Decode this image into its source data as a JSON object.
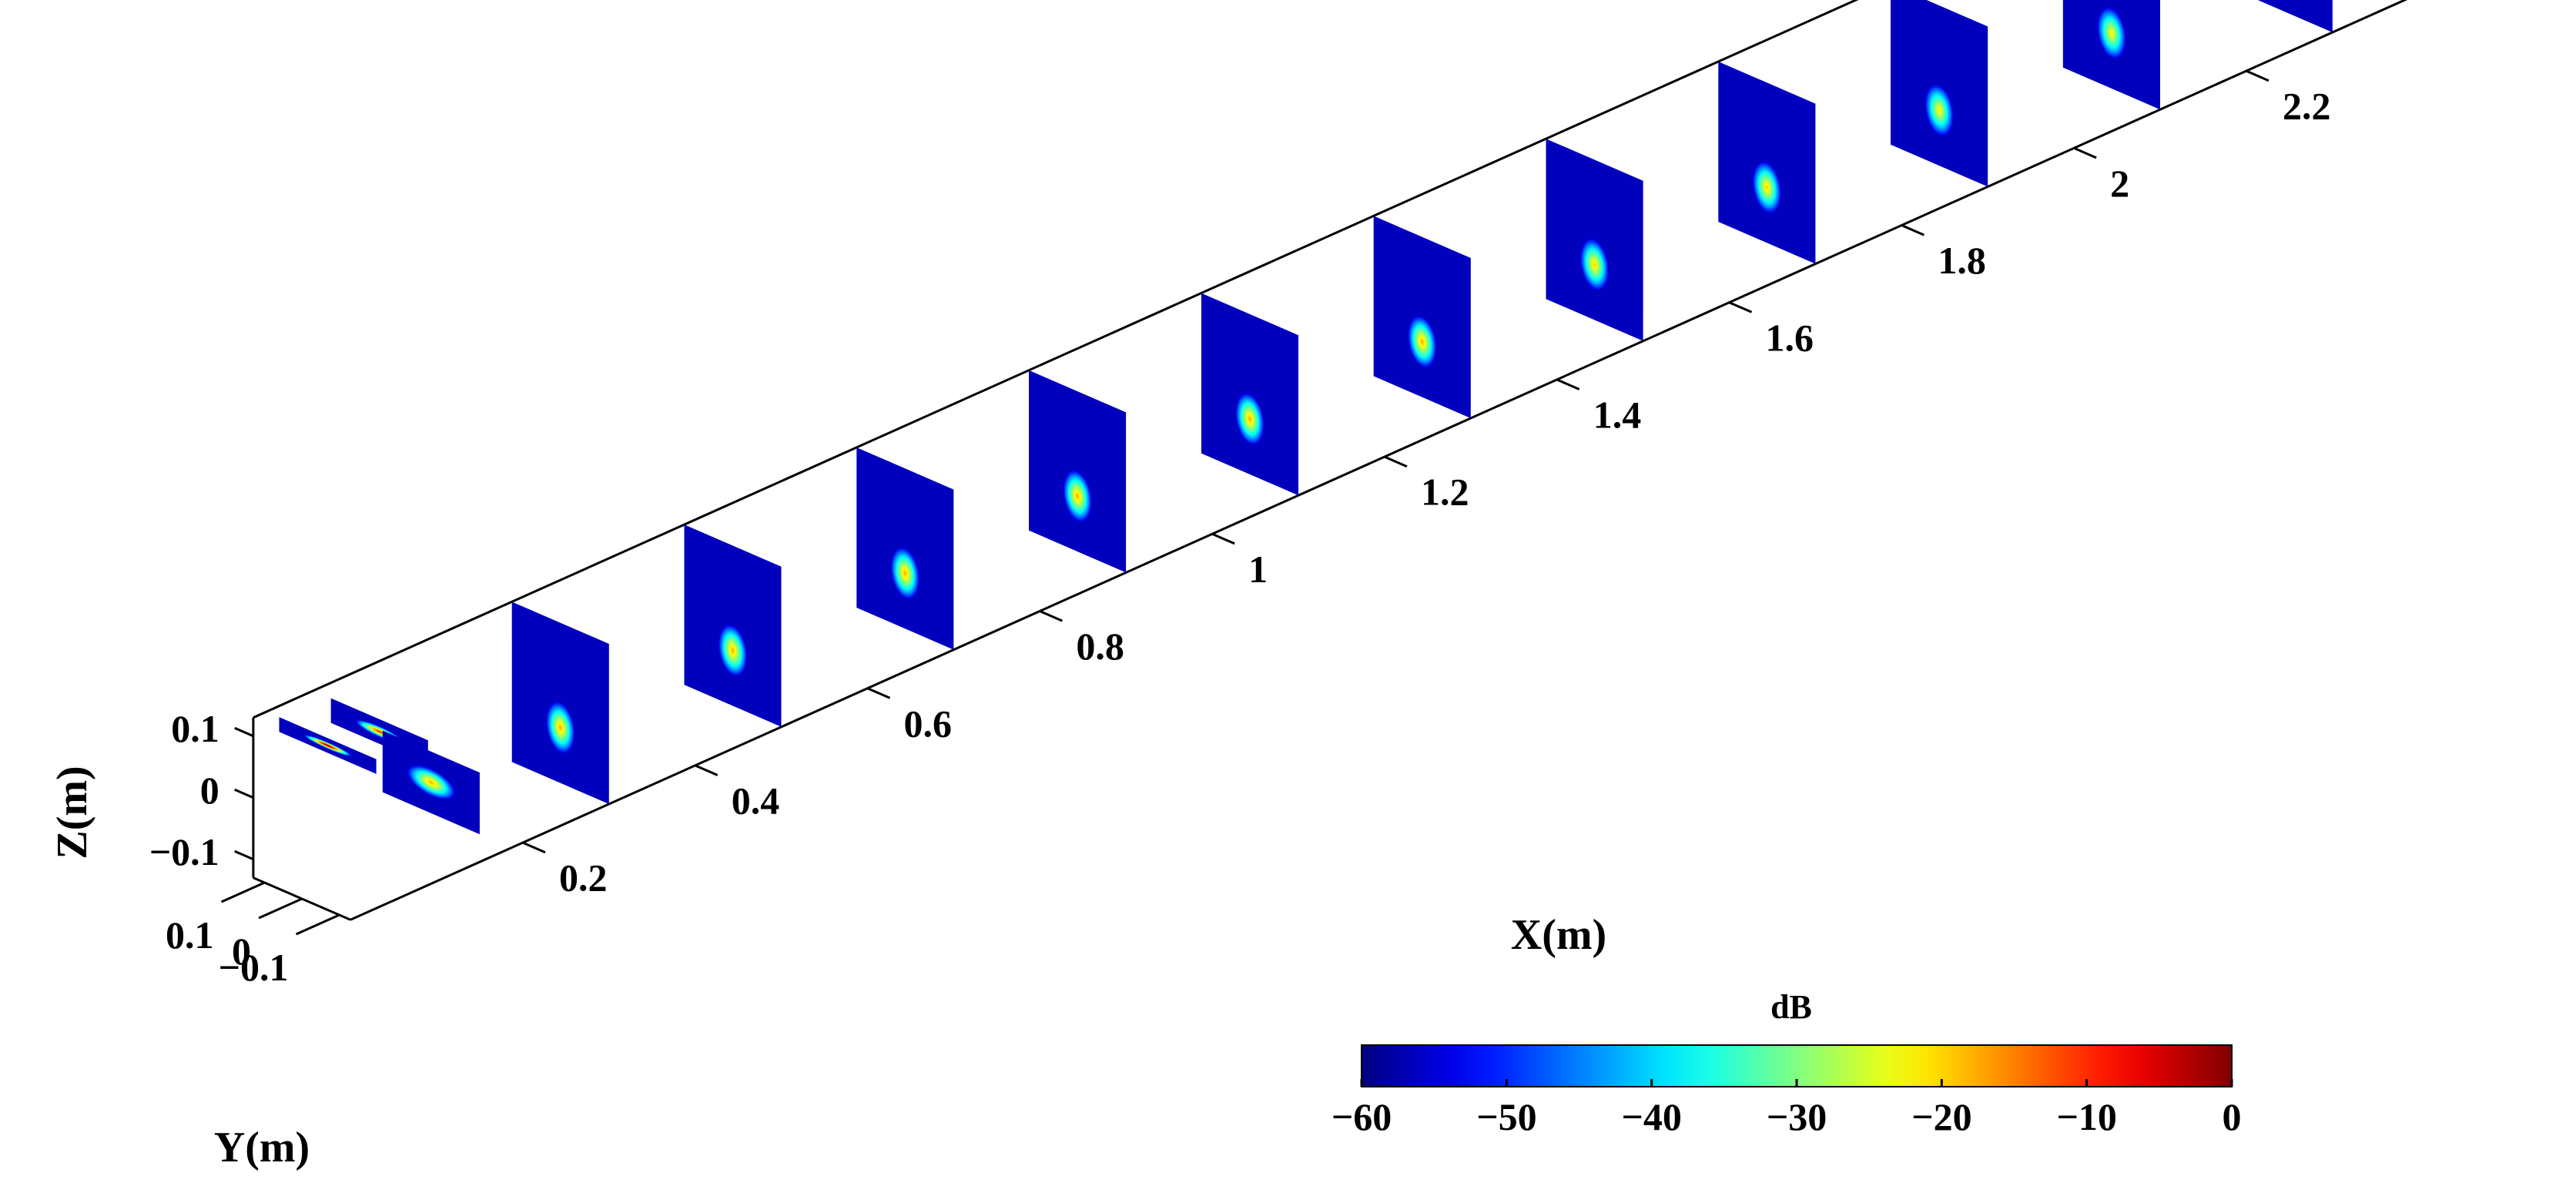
{
  "chart_data": {
    "type": "heatmap",
    "title": "",
    "x_axis": {
      "label": "X(m)",
      "ticks": [
        0.2,
        0.4,
        0.6,
        0.8,
        1,
        1.2,
        1.4,
        1.6,
        1.8,
        2,
        2.2
      ],
      "tick_labels": [
        "0.2",
        "0.4",
        "0.6",
        "0.8",
        "1",
        "1.2",
        "1.4",
        "1.6",
        "1.8",
        "2",
        "2.2"
      ]
    },
    "y_axis": {
      "label": "Y(m)",
      "ticks": [
        0.1,
        0,
        -0.1
      ],
      "tick_labels": [
        "0.1",
        "0",
        "−0.1"
      ]
    },
    "z_axis": {
      "label": "Z(m)",
      "ticks": [
        0.1,
        0,
        -0.1
      ],
      "tick_labels": [
        "0.1",
        "0",
        "−0.1"
      ]
    },
    "colorbar": {
      "label": "dB",
      "range": [
        -60,
        0
      ],
      "ticks": [
        -60,
        -50,
        -40,
        -30,
        -20,
        -10,
        0
      ],
      "tick_labels": [
        "−60",
        "−50",
        "−40",
        "−30",
        "−20",
        "−10",
        "0"
      ],
      "colormap": "jet"
    },
    "slices_full": [
      {
        "x": 0.3,
        "center_z": -0.04,
        "peak_db": -18
      },
      {
        "x": 0.5,
        "center_z": -0.04,
        "peak_db": -18
      },
      {
        "x": 0.7,
        "center_z": -0.04,
        "peak_db": -18
      },
      {
        "x": 0.9,
        "center_z": -0.04,
        "peak_db": -18
      },
      {
        "x": 1.1,
        "center_z": -0.04,
        "peak_db": -18
      },
      {
        "x": 1.3,
        "center_z": -0.04,
        "peak_db": -18
      },
      {
        "x": 1.5,
        "center_z": -0.04,
        "peak_db": -20
      },
      {
        "x": 1.7,
        "center_z": -0.04,
        "peak_db": -20
      },
      {
        "x": 1.9,
        "center_z": -0.04,
        "peak_db": -22
      },
      {
        "x": 2.1,
        "center_z": -0.04,
        "peak_db": -22
      },
      {
        "x": 2.3,
        "center_z": -0.04,
        "peak_db": -24
      }
    ],
    "slices_small": [
      {
        "x": 0.03,
        "center_z": 0.1,
        "peak_db": 0
      },
      {
        "x": 0.09,
        "center_z": 0.085,
        "peak_db": -10
      },
      {
        "x": 0.15,
        "center_z": -0.035,
        "peak_db": -18
      }
    ],
    "grid": false
  }
}
